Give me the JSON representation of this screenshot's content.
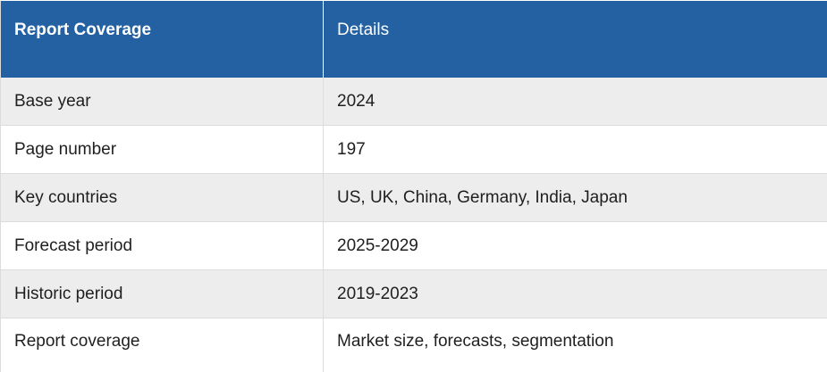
{
  "table": {
    "header": {
      "col1": "Report Coverage",
      "col2": "Details"
    },
    "rows": [
      {
        "label": "Base year",
        "value": "2024"
      },
      {
        "label": "Page number",
        "value": "197"
      },
      {
        "label": "Key countries",
        "value": "US, UK, China, Germany, India, Japan"
      },
      {
        "label": "Forecast period",
        "value": "2025-2029"
      },
      {
        "label": "Historic period",
        "value": "2019-2023"
      },
      {
        "label": "Report coverage",
        "value": "Market size, forecasts, segmentation"
      }
    ]
  },
  "colors": {
    "header_bg": "#2361a2",
    "stripe_bg": "#ededed",
    "border": "#dcdcdc"
  }
}
